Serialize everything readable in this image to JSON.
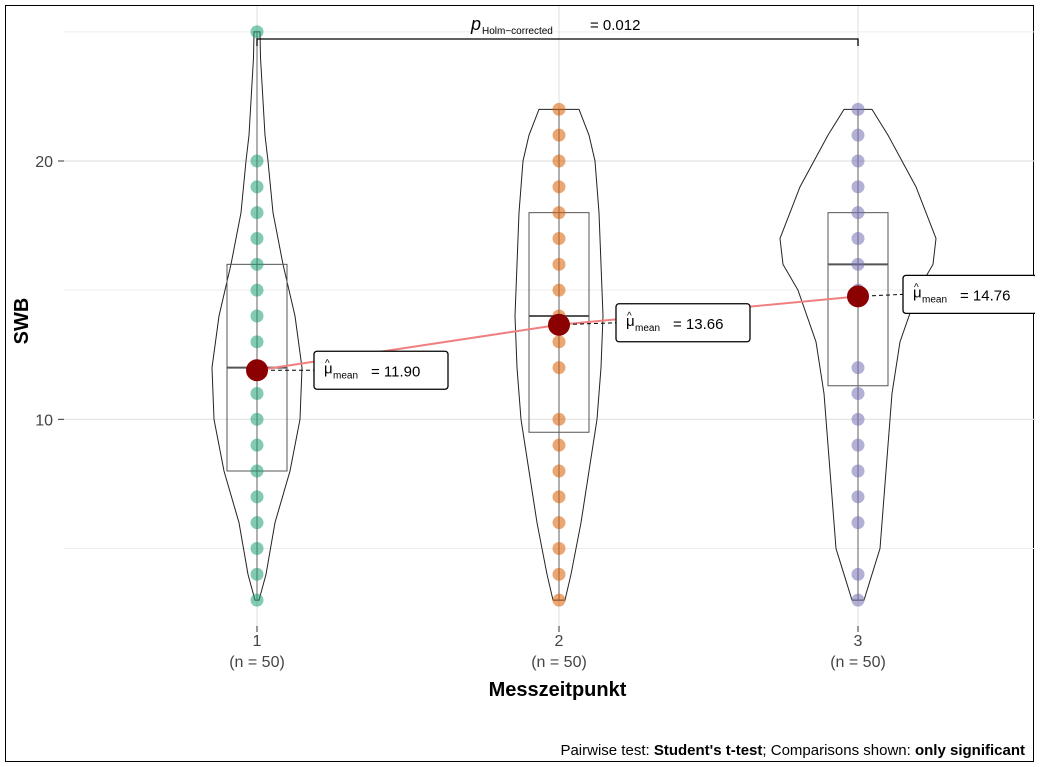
{
  "chart_data": {
    "type": "violin-box-dot",
    "ylabel": "SWB",
    "xlabel": "Messzeitpunkt",
    "y_ticks": [
      10,
      20
    ],
    "ylim": [
      2,
      26
    ],
    "grid": true,
    "groups": [
      {
        "label": "1",
        "n_label": "(n = 50)",
        "color": "#1B9E77",
        "mean": 11.9,
        "mean_label": "= 11.90",
        "box": {
          "q1": 8,
          "median": 12,
          "q3": 16
        },
        "points": [
          3,
          4,
          5,
          6,
          7,
          8,
          9,
          10,
          11,
          12,
          13,
          14,
          15,
          16,
          17,
          18,
          19,
          20,
          25
        ]
      },
      {
        "label": "2",
        "n_label": "(n = 50)",
        "color": "#D95F02",
        "mean": 13.66,
        "mean_label": "= 13.66",
        "box": {
          "q1": 9.5,
          "median": 14,
          "q3": 18
        },
        "points": [
          3,
          4,
          5,
          6,
          7,
          8,
          9,
          10,
          12,
          13,
          14,
          15,
          16,
          17,
          18,
          19,
          20,
          21,
          22
        ]
      },
      {
        "label": "3",
        "n_label": "(n = 50)",
        "color": "#7570B3",
        "mean": 14.76,
        "mean_label": "= 14.76",
        "box": {
          "q1": 11.3,
          "median": 16,
          "q3": 18
        },
        "points": [
          3,
          4,
          6,
          7,
          8,
          9,
          10,
          11,
          12,
          15,
          16,
          17,
          18,
          19,
          20,
          21,
          22
        ]
      }
    ],
    "mean_symbol": "μ",
    "mean_subscript": "mean",
    "mean_point_color": "#8B0000",
    "mean_line_color": "#F08080",
    "comparison": {
      "from_group": "1",
      "to_group": "3",
      "p_symbol": "p",
      "p_subscript": "Holm−corrected",
      "p_text": "= 0.012"
    }
  },
  "caption": {
    "prefix": "Pairwise test: ",
    "test": "Student's t-test",
    "middle": "; Comparisons shown: ",
    "shown": "only significant"
  }
}
